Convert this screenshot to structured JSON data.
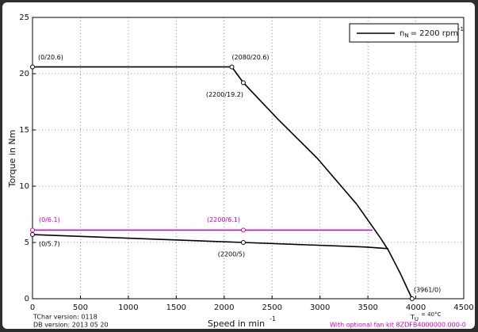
{
  "chart_data": {
    "type": "line",
    "xlabel": "Speed in min",
    "xlabel_sup": "-1",
    "ylabel": "Torque in Nm",
    "xlim": [
      0,
      4500
    ],
    "xticks": [
      0,
      500,
      1000,
      1500,
      2000,
      2500,
      3000,
      3500,
      4000,
      4500
    ],
    "ylim": [
      0,
      25
    ],
    "yticks": [
      0,
      5,
      10,
      15,
      20,
      25
    ],
    "grid": true,
    "legend": "upper right",
    "legend_text": [
      "n",
      "N",
      "= 2200 rpm",
      "-1"
    ],
    "series": [
      {
        "color": "#000000",
        "x": [
          0,
          2080,
          2200,
          2556,
          2970,
          3383,
          3631,
          3714,
          3838,
          3961
        ],
        "y": [
          20.6,
          20.6,
          19.2,
          16,
          12.5,
          8.4,
          5.4,
          4.3,
          2.25,
          0
        ]
      },
      {
        "color": "#000000",
        "x": [
          0,
          2200,
          3466,
          3714
        ],
        "y": [
          5.7,
          5,
          4.6,
          4.45
        ]
      },
      {
        "color": "#cc00cc",
        "x": [
          0,
          3548
        ],
        "y": [
          6.1,
          6.1
        ]
      }
    ],
    "annotations": [
      {
        "x": 0,
        "y": 20.6,
        "label": "(0/20.6)",
        "color": "#000000"
      },
      {
        "x": 2080,
        "y": 20.6,
        "label": "(2080/20.6)",
        "color": "#000000"
      },
      {
        "x": 2200,
        "y": 19.2,
        "label": "(2200/19.2)",
        "color": "#000000"
      },
      {
        "x": 3961,
        "y": 0,
        "label": "(3961/0)",
        "color": "#000000"
      },
      {
        "x": 0,
        "y": 5.7,
        "label": "(0/5.7)",
        "color": "#000000"
      },
      {
        "x": 2200,
        "y": 5,
        "label": "(2200/5)",
        "color": "#000000"
      },
      {
        "x": 0,
        "y": 6.1,
        "label": "(0/6.1)",
        "color": "#cc00cc"
      },
      {
        "x": 2200,
        "y": 6.1,
        "label": "(2200/6.1)",
        "color": "#cc00cc"
      }
    ],
    "footer": {
      "tchar": "TChar version: 0118",
      "db": "DB version: 2013 05 20",
      "temp": [
        "T",
        "U",
        "= 40°C"
      ],
      "fan": "With optional fan kit 8ZDFB4000000.000-0"
    }
  }
}
